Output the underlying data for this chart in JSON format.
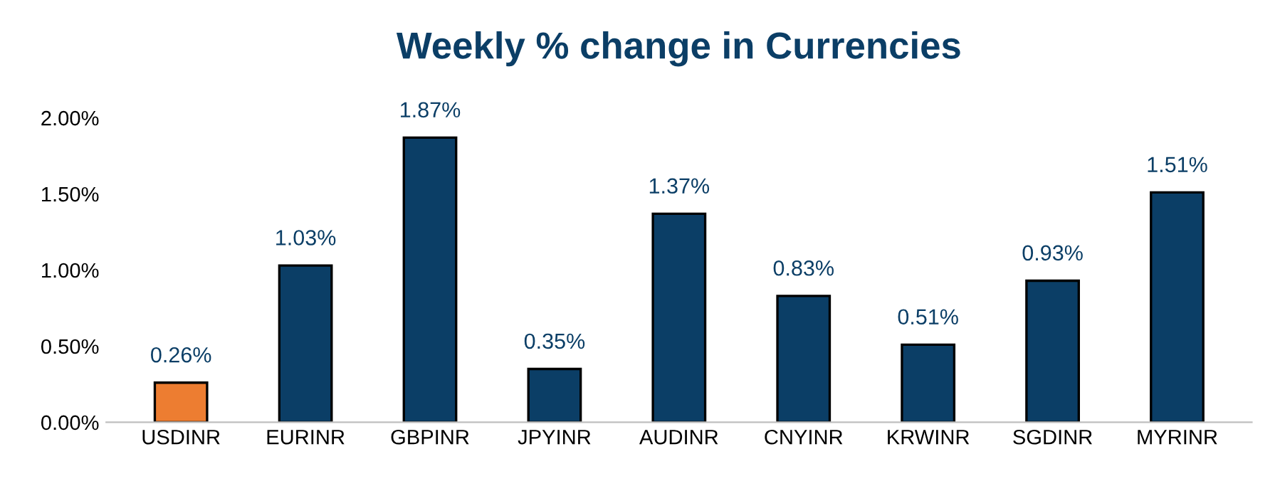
{
  "chart_data": {
    "type": "bar",
    "title": "Weekly % change in Currencies",
    "categories": [
      "USDINR",
      "EURINR",
      "GBPINR",
      "JPYINR",
      "AUDINR",
      "CNYINR",
      "KRWINR",
      "SGDINR",
      "MYRINR"
    ],
    "values": [
      0.26,
      1.03,
      1.87,
      0.35,
      1.37,
      0.83,
      0.51,
      0.93,
      1.51
    ],
    "value_labels": [
      "0.26%",
      "1.03%",
      "1.87%",
      "0.35%",
      "1.37%",
      "0.83%",
      "0.51%",
      "0.93%",
      "1.51%"
    ],
    "colors": [
      "#ed7d31",
      "#0b3e66",
      "#0b3e66",
      "#0b3e66",
      "#0b3e66",
      "#0b3e66",
      "#0b3e66",
      "#0b3e66",
      "#0b3e66"
    ],
    "ylim": [
      0,
      2.0
    ],
    "yticks": [
      {
        "value": 0,
        "label": "0.00%"
      },
      {
        "value": 0.5,
        "label": "0.50%"
      },
      {
        "value": 1.0,
        "label": "1.00%"
      },
      {
        "value": 1.5,
        "label": "1.50%"
      },
      {
        "value": 2.0,
        "label": "2.00%"
      }
    ],
    "grid": false,
    "legend": false
  }
}
